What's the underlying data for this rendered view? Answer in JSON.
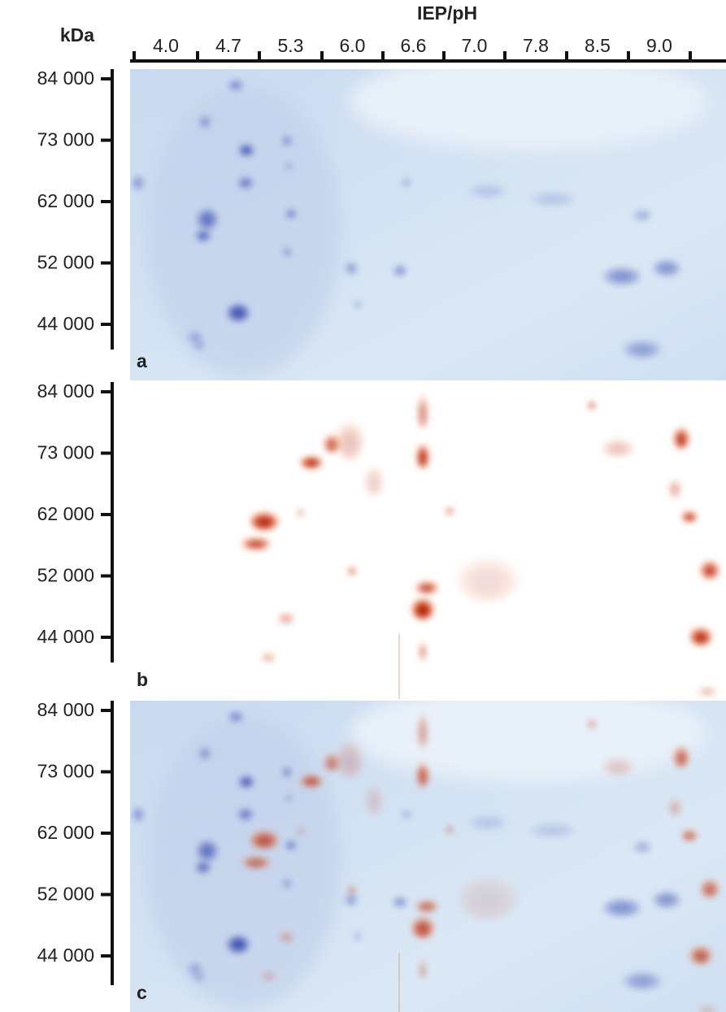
{
  "header": {
    "y_axis_title": "kDa",
    "x_axis_title": "IEP/pH",
    "ph_labels": [
      "4.0",
      "4.7",
      "5.3",
      "6.0",
      "6.6",
      "7.0",
      "7.8",
      "8.5",
      "9.0"
    ]
  },
  "panels": [
    {
      "letter": "a",
      "mw_labels": [
        "84 000",
        "73 000",
        "62 000",
        "52 000",
        "44 000"
      ]
    },
    {
      "letter": "b",
      "mw_labels": [
        "84 000",
        "73 000",
        "62 000",
        "52 000",
        "44 000"
      ]
    },
    {
      "letter": "c",
      "mw_labels": [
        "84 000",
        "73 000",
        "62 000",
        "52 000",
        "44 000"
      ]
    }
  ]
}
